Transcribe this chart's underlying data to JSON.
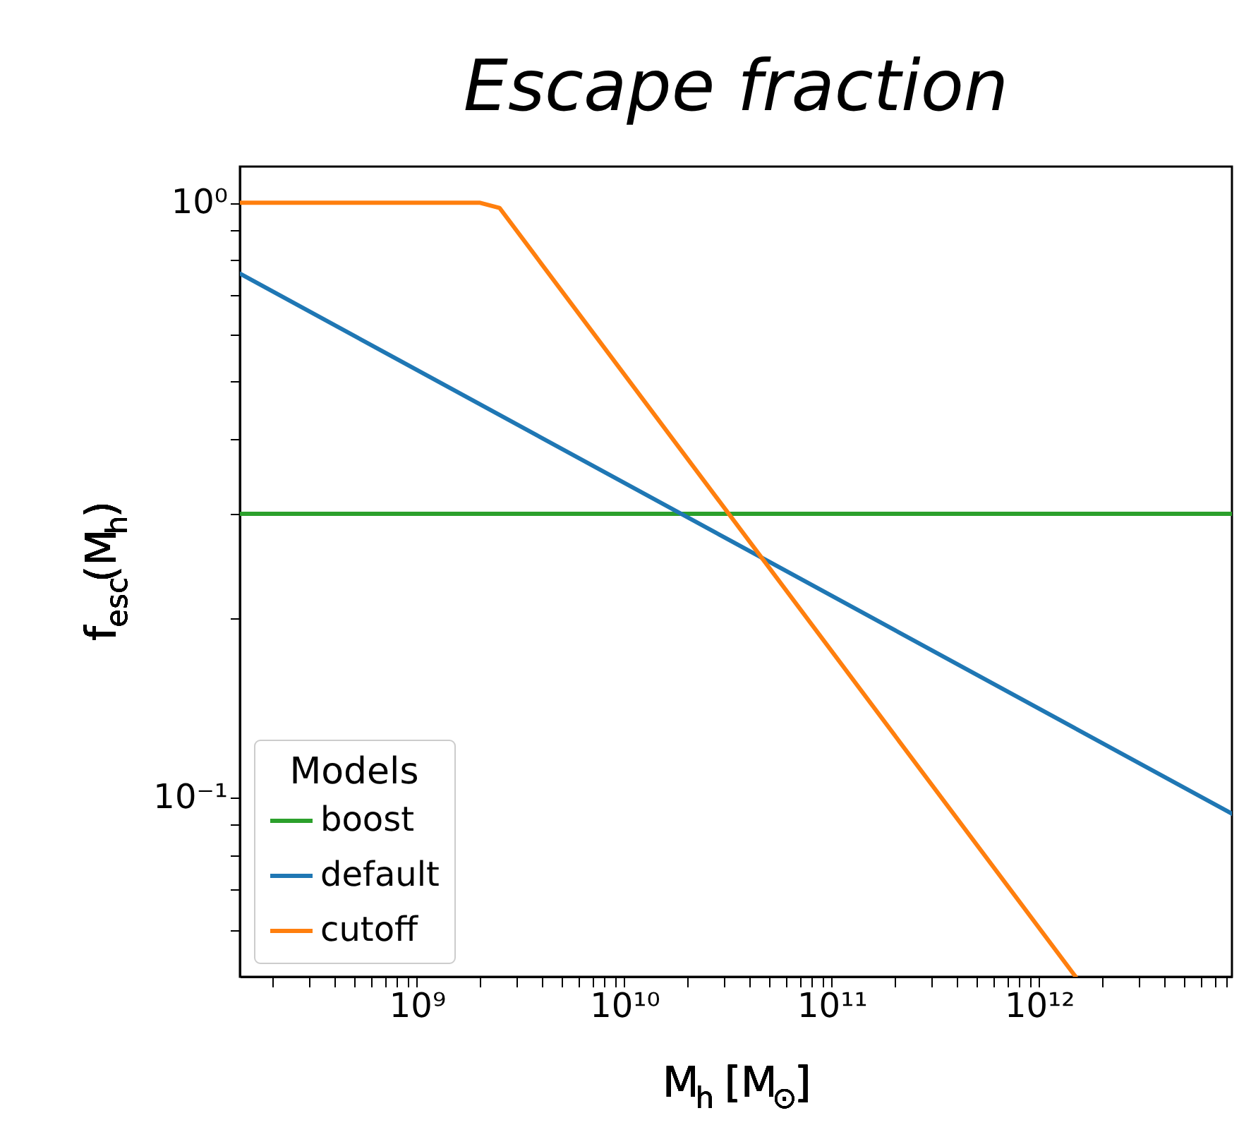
{
  "chart_data": {
    "type": "line",
    "title": "Escape fraction",
    "xlabel": "M$_{h}$ [M$_{⊙}$]",
    "ylabel": "f$_{esc}$(M$_{h}$)",
    "legend_title": "Models",
    "legend": "bottom left",
    "log": "xy",
    "grid": false,
    "marker": "none",
    "line_style": "solid",
    "xlim": [
      140000000.0,
      8500000000000.0
    ],
    "ylim": [
      0.05,
      1.15
    ],
    "xticks": [
      {
        "value": 1000000000.0,
        "label": "10⁹"
      },
      {
        "value": 10000000000.0,
        "label": "10¹⁰"
      },
      {
        "value": 100000000000.0,
        "label": "10¹¹"
      },
      {
        "value": 1000000000000.0,
        "label": "10¹²"
      },
      {
        "value": 200000000.0,
        "label": null
      },
      {
        "value": 300000000.0,
        "label": null
      },
      {
        "value": 400000000.0,
        "label": null
      },
      {
        "value": 500000000.0,
        "label": null
      },
      {
        "value": 600000000.0,
        "label": null
      },
      {
        "value": 700000000.0,
        "label": null
      },
      {
        "value": 800000000.0,
        "label": null
      },
      {
        "value": 900000000.0,
        "label": null
      },
      {
        "value": 2000000000.0,
        "label": null
      },
      {
        "value": 3000000000.0,
        "label": null
      },
      {
        "value": 4000000000.0,
        "label": null
      },
      {
        "value": 5000000000.0,
        "label": null
      },
      {
        "value": 6000000000.0,
        "label": null
      },
      {
        "value": 7000000000.0,
        "label": null
      },
      {
        "value": 8000000000.0,
        "label": null
      },
      {
        "value": 9000000000.0,
        "label": null
      },
      {
        "value": 20000000000.0,
        "label": null
      },
      {
        "value": 30000000000.0,
        "label": null
      },
      {
        "value": 40000000000.0,
        "label": null
      },
      {
        "value": 50000000000.0,
        "label": null
      },
      {
        "value": 60000000000.0,
        "label": null
      },
      {
        "value": 70000000000.0,
        "label": null
      },
      {
        "value": 80000000000.0,
        "label": null
      },
      {
        "value": 90000000000.0,
        "label": null
      },
      {
        "value": 200000000000.0,
        "label": null
      },
      {
        "value": 300000000000.0,
        "label": null
      },
      {
        "value": 400000000000.0,
        "label": null
      },
      {
        "value": 500000000000.0,
        "label": null
      },
      {
        "value": 600000000000.0,
        "label": null
      },
      {
        "value": 700000000000.0,
        "label": null
      },
      {
        "value": 800000000000.0,
        "label": null
      },
      {
        "value": 900000000000.0,
        "label": null
      },
      {
        "value": 2000000000000.0,
        "label": null
      },
      {
        "value": 3000000000000.0,
        "label": null
      },
      {
        "value": 4000000000000.0,
        "label": null
      },
      {
        "value": 5000000000000.0,
        "label": null
      },
      {
        "value": 6000000000000.0,
        "label": null
      },
      {
        "value": 7000000000000.0,
        "label": null
      },
      {
        "value": 8000000000000.0,
        "label": null
      }
    ],
    "yticks": [
      {
        "value": 1,
        "label": "10⁰"
      },
      {
        "value": 0.1,
        "label": "10⁻¹"
      },
      {
        "value": 0.06,
        "label": null
      },
      {
        "value": 0.07,
        "label": null
      },
      {
        "value": 0.08,
        "label": null
      },
      {
        "value": 0.09,
        "label": null
      },
      {
        "value": 0.2,
        "label": null
      },
      {
        "value": 0.3,
        "label": null
      },
      {
        "value": 0.4,
        "label": null
      },
      {
        "value": 0.5,
        "label": null
      },
      {
        "value": 0.6,
        "label": null
      },
      {
        "value": 0.7,
        "label": null
      },
      {
        "value": 0.8,
        "label": null
      },
      {
        "value": 0.9,
        "label": null
      }
    ],
    "series": [
      {
        "name": "boost",
        "color": "#2ca02c",
        "x": [
          140000000.0,
          8500000000000.0
        ],
        "values": [
          0.3,
          0.3
        ]
      },
      {
        "name": "default",
        "color": "#1f77b4",
        "x": [
          140000000.0,
          8500000000000.0
        ],
        "values": [
          0.76,
          0.094
        ]
      },
      {
        "name": "cutoff",
        "color": "#ff7f0e",
        "x": [
          140000000.0,
          2000000000.0,
          2500000000.0,
          1500000000000.0
        ],
        "values": [
          1,
          1,
          0.98,
          0.05
        ]
      }
    ]
  }
}
